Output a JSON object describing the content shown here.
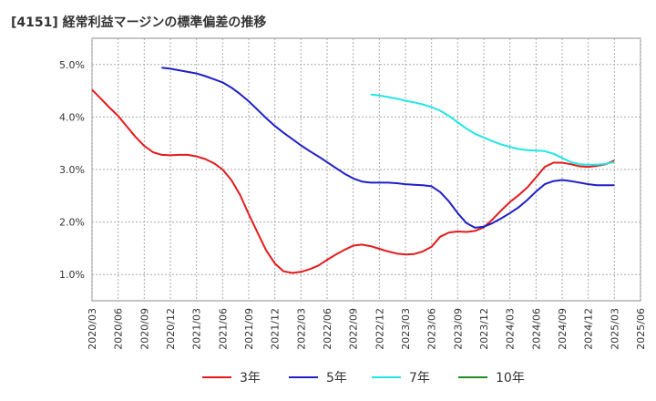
{
  "chart_data": {
    "type": "line",
    "title": "[4151]  経常利益マージンの標準偏差の推移",
    "xlabel": "",
    "ylabel": "",
    "ylim": [
      0.5,
      5.5
    ],
    "yticks": [
      "1.0%",
      "2.0%",
      "3.0%",
      "4.0%",
      "5.0%"
    ],
    "ytick_values": [
      1.0,
      2.0,
      3.0,
      4.0,
      5.0
    ],
    "x_ticks": [
      "2020/03",
      "2020/06",
      "2020/09",
      "2020/12",
      "2021/03",
      "2021/06",
      "2021/09",
      "2021/12",
      "2022/03",
      "2022/06",
      "2022/09",
      "2022/12",
      "2023/03",
      "2023/06",
      "2023/09",
      "2023/12",
      "2024/03",
      "2024/06",
      "2024/09",
      "2024/12",
      "2025/03",
      "2025/06"
    ],
    "grid": true,
    "legend_position": "bottom",
    "series": [
      {
        "name": "3年",
        "color": "#e31a1c",
        "x": [
          "2020/03",
          "2020/04",
          "2020/05",
          "2020/06",
          "2020/07",
          "2020/08",
          "2020/09",
          "2020/10",
          "2020/11",
          "2020/12",
          "2021/01",
          "2021/02",
          "2021/03",
          "2021/04",
          "2021/05",
          "2021/06",
          "2021/07",
          "2021/08",
          "2021/09",
          "2021/10",
          "2021/11",
          "2021/12",
          "2022/01",
          "2022/02",
          "2022/03",
          "2022/04",
          "2022/05",
          "2022/06",
          "2022/07",
          "2022/08",
          "2022/09",
          "2022/10",
          "2022/11",
          "2022/12",
          "2023/01",
          "2023/02",
          "2023/03",
          "2023/04",
          "2023/05",
          "2023/06",
          "2023/07",
          "2023/08",
          "2023/09",
          "2023/10",
          "2023/11",
          "2023/12",
          "2024/01",
          "2024/02",
          "2024/03",
          "2024/04",
          "2024/05",
          "2024/06",
          "2024/07",
          "2024/08",
          "2024/09",
          "2024/10",
          "2024/11",
          "2024/12",
          "2025/01",
          "2025/02",
          "2025/03"
        ],
        "values": [
          4.52,
          4.35,
          4.18,
          4.02,
          3.82,
          3.62,
          3.45,
          3.33,
          3.28,
          3.27,
          3.28,
          3.28,
          3.25,
          3.2,
          3.12,
          3.0,
          2.8,
          2.52,
          2.15,
          1.8,
          1.46,
          1.21,
          1.06,
          1.03,
          1.05,
          1.1,
          1.17,
          1.28,
          1.38,
          1.47,
          1.55,
          1.57,
          1.54,
          1.49,
          1.44,
          1.4,
          1.38,
          1.39,
          1.44,
          1.53,
          1.72,
          1.8,
          1.82,
          1.81,
          1.83,
          1.9,
          2.05,
          2.22,
          2.38,
          2.51,
          2.66,
          2.85,
          3.05,
          3.13,
          3.13,
          3.1,
          3.06,
          3.05,
          3.07,
          3.1,
          3.17
        ]
      },
      {
        "name": "5年",
        "color": "#1f1fc8",
        "x": [
          "2020/11",
          "2020/12",
          "2021/01",
          "2021/02",
          "2021/03",
          "2021/04",
          "2021/05",
          "2021/06",
          "2021/07",
          "2021/08",
          "2021/09",
          "2021/10",
          "2021/11",
          "2021/12",
          "2022/01",
          "2022/02",
          "2022/03",
          "2022/04",
          "2022/05",
          "2022/06",
          "2022/07",
          "2022/08",
          "2022/09",
          "2022/10",
          "2022/11",
          "2022/12",
          "2023/01",
          "2023/02",
          "2023/03",
          "2023/04",
          "2023/05",
          "2023/06",
          "2023/07",
          "2023/08",
          "2023/09",
          "2023/10",
          "2023/11",
          "2023/12",
          "2024/01",
          "2024/02",
          "2024/03",
          "2024/04",
          "2024/05",
          "2024/06",
          "2024/07",
          "2024/08",
          "2024/09",
          "2024/10",
          "2024/11",
          "2024/12",
          "2025/01",
          "2025/02",
          "2025/03"
        ],
        "values": [
          4.94,
          4.92,
          4.89,
          4.86,
          4.83,
          4.78,
          4.72,
          4.66,
          4.56,
          4.44,
          4.3,
          4.14,
          3.98,
          3.83,
          3.7,
          3.58,
          3.46,
          3.35,
          3.25,
          3.14,
          3.03,
          2.92,
          2.83,
          2.77,
          2.75,
          2.75,
          2.75,
          2.74,
          2.72,
          2.71,
          2.7,
          2.68,
          2.57,
          2.39,
          2.17,
          1.98,
          1.89,
          1.91,
          1.98,
          2.07,
          2.17,
          2.28,
          2.42,
          2.58,
          2.72,
          2.78,
          2.8,
          2.78,
          2.75,
          2.72,
          2.7,
          2.7,
          2.7
        ]
      },
      {
        "name": "7年",
        "color": "#22e5e5",
        "x": [
          "2022/11",
          "2022/12",
          "2023/01",
          "2023/02",
          "2023/03",
          "2023/04",
          "2023/05",
          "2023/06",
          "2023/07",
          "2023/08",
          "2023/09",
          "2023/10",
          "2023/11",
          "2023/12",
          "2024/01",
          "2024/02",
          "2024/03",
          "2024/04",
          "2024/05",
          "2024/06",
          "2024/07",
          "2024/08",
          "2024/09",
          "2024/10",
          "2024/11",
          "2024/12",
          "2025/01",
          "2025/02",
          "2025/03"
        ],
        "values": [
          4.43,
          4.41,
          4.38,
          4.35,
          4.31,
          4.28,
          4.24,
          4.19,
          4.12,
          4.02,
          3.9,
          3.78,
          3.68,
          3.61,
          3.54,
          3.48,
          3.43,
          3.39,
          3.37,
          3.36,
          3.35,
          3.3,
          3.22,
          3.14,
          3.1,
          3.09,
          3.09,
          3.11,
          3.14
        ]
      },
      {
        "name": "10年",
        "color": "#228b22",
        "x": [],
        "values": []
      }
    ]
  }
}
